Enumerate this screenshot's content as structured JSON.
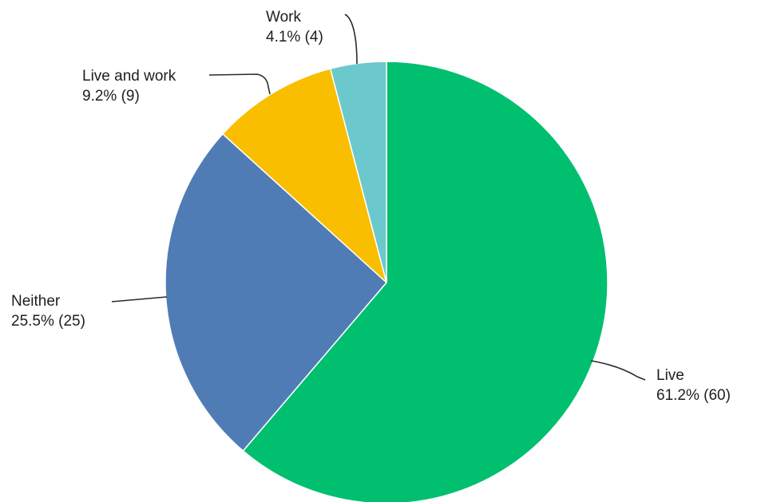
{
  "chart_data": {
    "type": "pie",
    "title": "",
    "slices": [
      {
        "label": "Live",
        "percent_text": "61.2% (60)",
        "percent": 61.2,
        "count": 60,
        "color": "#00bf6f"
      },
      {
        "label": "Neither",
        "percent_text": "25.5% (25)",
        "percent": 25.5,
        "count": 25,
        "color": "#507cb6"
      },
      {
        "label": "Live and work",
        "percent_text": "9.2% (9)",
        "percent": 9.2,
        "count": 9,
        "color": "#f9be00"
      },
      {
        "label": "Work",
        "percent_text": "4.1% (4)",
        "percent": 4.1,
        "count": 4,
        "color": "#6bc8cd"
      }
    ],
    "start": "12 o'clock",
    "direction": "clockwise",
    "legend": "none"
  }
}
